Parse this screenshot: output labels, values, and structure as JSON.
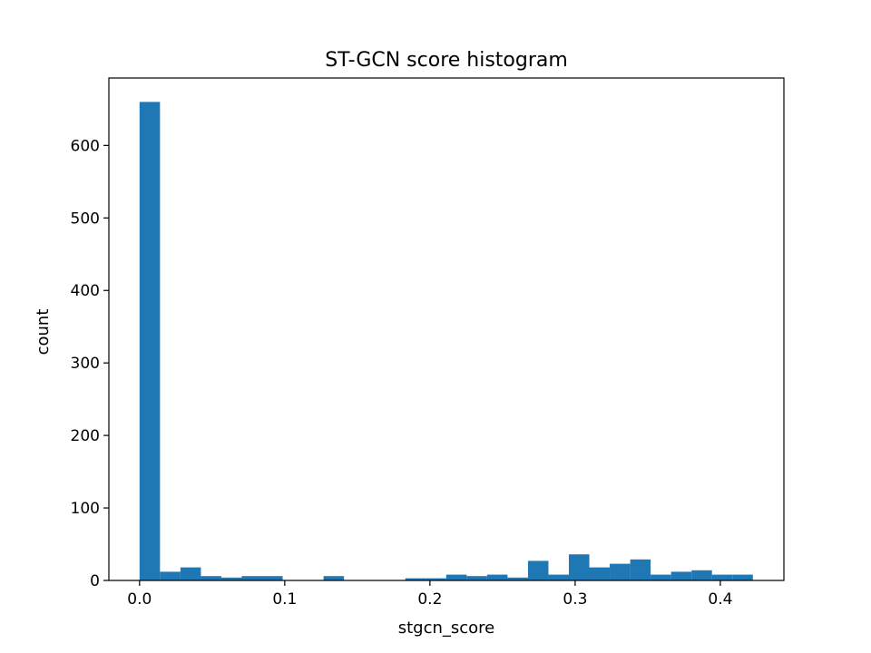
{
  "chart_data": {
    "type": "bar",
    "title": "ST-GCN score histogram",
    "xlabel": "stgcn_score",
    "ylabel": "count",
    "color": "#1f77b4",
    "grid": false,
    "xlim": [
      -0.02113,
      0.44378
    ],
    "ylim": [
      0,
      693
    ],
    "xticks": [
      0.0,
      0.1,
      0.2,
      0.3,
      0.4
    ],
    "xtick_labels": [
      "0.0",
      "0.1",
      "0.2",
      "0.3",
      "0.4"
    ],
    "yticks": [
      0,
      100,
      200,
      300,
      400,
      500,
      600
    ],
    "ytick_labels": [
      "0",
      "100",
      "200",
      "300",
      "400",
      "500",
      "600"
    ],
    "bin_start": 0.0,
    "bin_width": 0.01408,
    "counts": [
      660,
      12,
      18,
      6,
      4,
      6,
      6,
      0,
      0,
      6,
      0,
      0,
      0,
      3,
      3,
      8,
      6,
      8,
      4,
      27,
      8,
      36,
      18,
      23,
      29,
      8,
      12,
      14,
      8,
      8
    ]
  }
}
